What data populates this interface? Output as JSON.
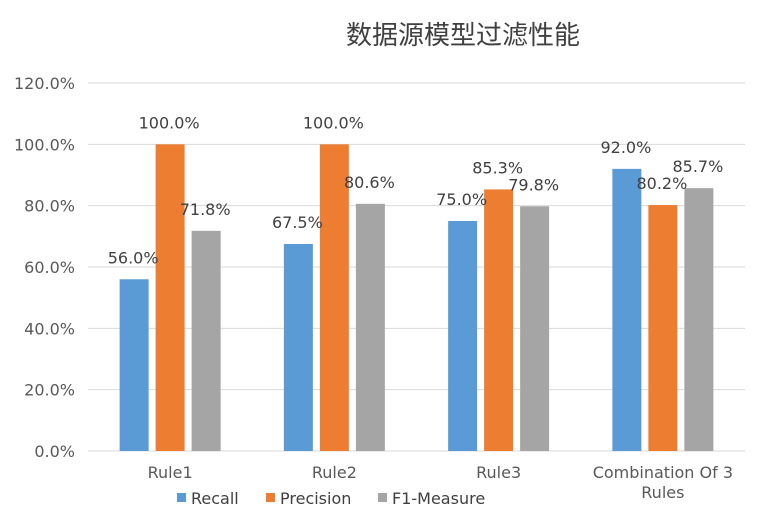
{
  "chart_data": {
    "type": "bar",
    "title": "数据源模型过滤性能",
    "categories": [
      [
        "Rule1"
      ],
      [
        "Rule2"
      ],
      [
        "Rule3"
      ],
      [
        "Combination Of 3",
        "Rules"
      ]
    ],
    "series": [
      {
        "name": "Recall",
        "values": [
          56.0,
          67.5,
          75.0,
          92.0
        ],
        "labels": [
          "56.0%",
          "67.5%",
          "75.0%",
          "92.0%"
        ],
        "color": "#5b9bd5"
      },
      {
        "name": "Precision",
        "values": [
          100.0,
          100.0,
          85.3,
          80.2
        ],
        "labels": [
          "100.0%",
          "100.0%",
          "85.3%",
          "80.2%"
        ],
        "color": "#ed7d31"
      },
      {
        "name": "F1-Measure",
        "values": [
          71.8,
          80.6,
          79.8,
          85.7
        ],
        "labels": [
          "71.8%",
          "80.6%",
          "79.8%",
          "85.7%"
        ],
        "color": "#a5a5a5"
      }
    ],
    "yticks": [
      "0.0%",
      "20.0%",
      "40.0%",
      "60.0%",
      "80.0%",
      "100.0%",
      "120.0%"
    ],
    "ylim": [
      0,
      120
    ],
    "xlabel": "",
    "ylabel": "",
    "grid": "horizontal",
    "legend": "bottom",
    "gridColor": "#d9d9d9"
  }
}
